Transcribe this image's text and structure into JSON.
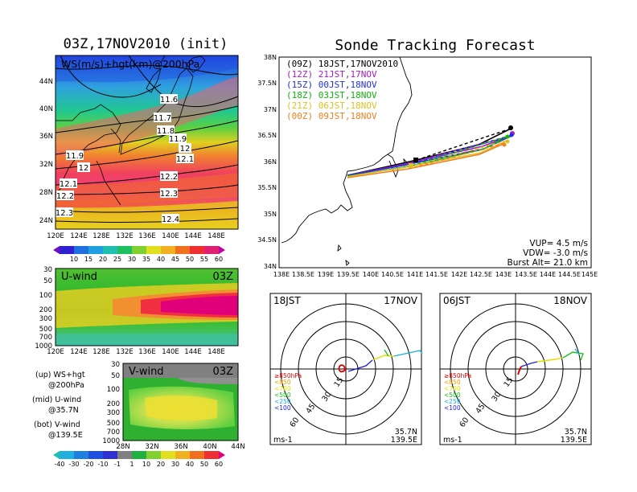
{
  "left": {
    "title": "03Z,17NOV2010 (init)",
    "map_label": "WS(m/s)+hgt(km)@200hPa",
    "lat_labels": [
      "44N",
      "40N",
      "36N",
      "32N",
      "28N",
      "24N"
    ],
    "lon_labels": [
      "120E",
      "124E",
      "128E",
      "132E",
      "136E",
      "140E",
      "144E",
      "148E"
    ],
    "hgt_labels": [
      "11.6",
      "11.7",
      "11.8",
      "11.9",
      "12",
      "12.1",
      "11.9",
      "12",
      "12.1",
      "12.2",
      "12.2",
      "12.3",
      "12.3",
      "12.4"
    ],
    "colorbar_ticks": [
      "10",
      "15",
      "20",
      "25",
      "30",
      "35",
      "40",
      "45",
      "50",
      "55",
      "60"
    ],
    "uwind": {
      "label": "U-wind",
      "time": "03Z",
      "p_labels": [
        "30",
        "50",
        "100",
        "200",
        "300",
        "500",
        "700",
        "1000"
      ],
      "lon_labels": [
        "120E",
        "124E",
        "128E",
        "132E",
        "136E",
        "140E",
        "144E",
        "148E"
      ]
    },
    "vwind": {
      "label": "V-wind",
      "time": "03Z",
      "p_labels": [
        "30",
        "50",
        "100",
        "200",
        "300",
        "500",
        "700",
        "1000"
      ],
      "lat_labels": [
        "28N",
        "32N",
        "36N",
        "40N",
        "44N"
      ]
    },
    "legend": [
      {
        "a": "(up) WS+hgt",
        "b": "@200hPa"
      },
      {
        "a": "(mid) U-wind",
        "b": "@35.7N"
      },
      {
        "a": "(bot) V-wind",
        "b": "@139.5E"
      }
    ],
    "vcolorbar_ticks": [
      "-40",
      "-30",
      "-20",
      "-10",
      "-1",
      "1",
      "10",
      "20",
      "30",
      "40",
      "50",
      "60"
    ]
  },
  "right": {
    "title": "Sonde Tracking Forecast",
    "lat_labels": [
      "38N",
      "37.5N",
      "37N",
      "36.5N",
      "36N",
      "35.5N",
      "35N",
      "34.5N",
      "34N"
    ],
    "lon_labels": [
      "138E",
      "138.5E",
      "139E",
      "139.5E",
      "140E",
      "140.5E",
      "141E",
      "141.5E",
      "142E",
      "142.5E",
      "143E",
      "143.5E",
      "144E",
      "144.5E",
      "145E"
    ],
    "tracks": [
      {
        "z": "(09Z)",
        "label": "18JST,17NOV2010",
        "color": "#000000"
      },
      {
        "z": "(12Z)",
        "label": "21JST,17NOV",
        "color": "#a020c0"
      },
      {
        "z": "(15Z)",
        "label": "00JST,18NOV",
        "color": "#2030e0"
      },
      {
        "z": "(18Z)",
        "label": "03JST,18NOV",
        "color": "#10b010"
      },
      {
        "z": "(21Z)",
        "label": "06JST,18NOV",
        "color": "#e0c020"
      },
      {
        "z": "(00Z)",
        "label": "09JST,18NOV",
        "color": "#f08020"
      }
    ],
    "params": [
      "VUP= 4.5 m/s",
      "VDW= -3.0 m/s",
      "Burst Alt= 21.0 km"
    ]
  },
  "polar": [
    {
      "time": "18JST",
      "date": "17NOV",
      "lat": "35.7N",
      "lon": "139.5E",
      "unit": "ms-1",
      "rings": [
        "15",
        "30",
        "45",
        "60"
      ],
      "levels": [
        {
          "t": "≥850hPa",
          "c": "#e00000"
        },
        {
          "t": "<850",
          "c": "#f0a000"
        },
        {
          "t": "<700",
          "c": "#e0e000"
        },
        {
          "t": "<500",
          "c": "#20c020"
        },
        {
          "t": "<250",
          "c": "#20b0e0"
        },
        {
          "t": "<100",
          "c": "#2020e0"
        }
      ]
    },
    {
      "time": "06JST",
      "date": "18NOV",
      "lat": "35.7N",
      "lon": "139.5E",
      "unit": "ms-1",
      "rings": [
        "15",
        "30",
        "45",
        "60"
      ],
      "levels": [
        {
          "t": "≥850hPa",
          "c": "#e00000"
        },
        {
          "t": "<850",
          "c": "#f0a000"
        },
        {
          "t": "<700",
          "c": "#e0e000"
        },
        {
          "t": "<500",
          "c": "#20c020"
        },
        {
          "t": "<250",
          "c": "#20b0e0"
        },
        {
          "t": "<100",
          "c": "#2020e0"
        }
      ]
    }
  ]
}
